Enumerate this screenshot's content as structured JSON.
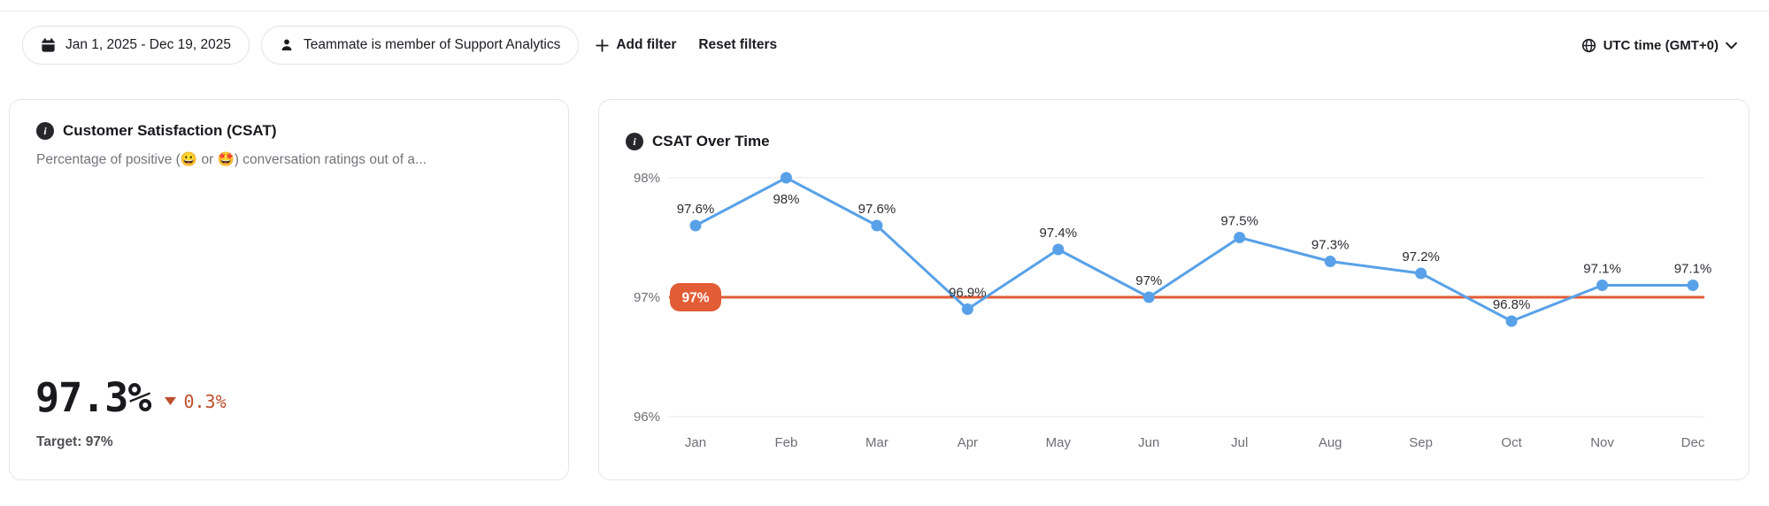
{
  "topbar": {
    "date_range": "Jan 1, 2025 - Dec 19, 2025",
    "teammate_filter": "Teammate is member of Support Analytics",
    "add_filter_label": "Add filter",
    "reset_filters_label": "Reset filters",
    "timezone_label": "UTC time (GMT+0)"
  },
  "csat_card": {
    "title": "Customer Satisfaction (CSAT)",
    "description": "Percentage of positive (😀 or 🤩) conversation ratings out of a...",
    "value": "97.3%",
    "delta": "0.3%",
    "delta_direction": "down",
    "target_label": "Target: 97%"
  },
  "chart_card": {
    "title": "CSAT Over Time"
  },
  "chart_data": {
    "type": "line",
    "title": "CSAT Over Time",
    "x": [
      "Jan",
      "Feb",
      "Mar",
      "Apr",
      "May",
      "Jun",
      "Jul",
      "Aug",
      "Sep",
      "Oct",
      "Nov",
      "Dec"
    ],
    "series": [
      {
        "name": "CSAT",
        "values": [
          97.6,
          98,
          97.6,
          96.9,
          97.4,
          97,
          97.5,
          97.3,
          97.2,
          96.8,
          97.1,
          97.1
        ]
      }
    ],
    "point_labels": [
      "97.6%",
      "98%",
      "97.6%",
      "96.9%",
      "97.4%",
      "97%",
      "97.5%",
      "97.3%",
      "97.2%",
      "96.8%",
      "97.1%",
      "97.1%"
    ],
    "y_ticks": [
      {
        "value": 98,
        "label": "98%"
      },
      {
        "value": 97,
        "label": "97%"
      },
      {
        "value": 96,
        "label": "96%"
      }
    ],
    "ylim": [
      95.7,
      98.4
    ],
    "target": {
      "value": 97,
      "label": "97%"
    },
    "legend": false,
    "grid": "horizontal",
    "colors": {
      "line": "#58a1e8",
      "target": "#e25c35",
      "axis_text": "#6e6e76",
      "point_label": "#2c2c31"
    }
  }
}
